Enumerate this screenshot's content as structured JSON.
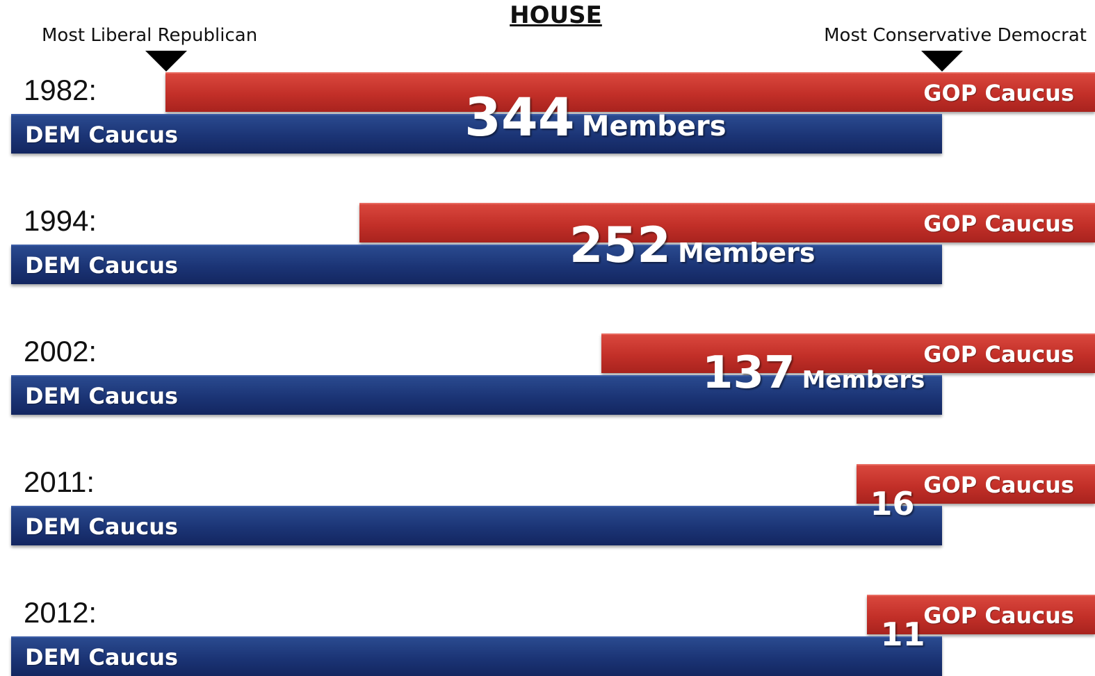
{
  "chart_data": {
    "type": "bar",
    "title": "HOUSE",
    "annotations": {
      "left_marker": "Most Liberal Republican",
      "right_marker": "Most Conservative Democrat"
    },
    "categories": [
      "1982:",
      "1994:",
      "2002:",
      "2011:",
      "2012:"
    ],
    "gop_label": "GOP Caucus",
    "dem_label": "DEM Caucus",
    "unit_label": "Members",
    "overlap_members": [
      344,
      252,
      137,
      16,
      11
    ],
    "colors": {
      "gop": "#c22f28",
      "dem": "#1b3475"
    }
  }
}
